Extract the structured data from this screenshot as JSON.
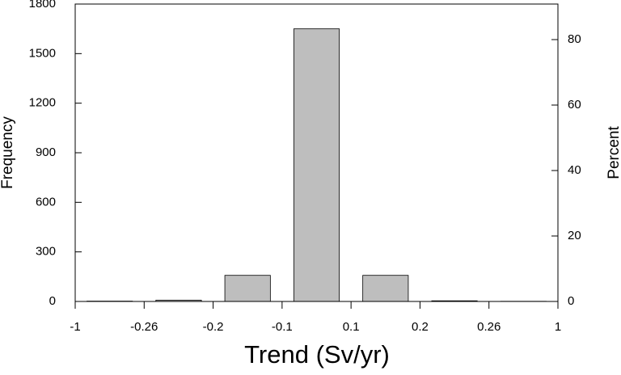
{
  "chart_data": {
    "type": "histogram",
    "bins": [
      -1,
      -0.26,
      -0.2,
      -0.1,
      0.1,
      0.2,
      0.26,
      1
    ],
    "values": [
      2,
      8,
      158,
      1650,
      158,
      4,
      1
    ],
    "color": "#bebebe",
    "xlabel": "Trend (Sv/yr)",
    "ylabel": "Frequency",
    "y2label": "Percent",
    "ylim": [
      0,
      1800
    ],
    "yticks": [
      0,
      300,
      600,
      900,
      1200,
      1500,
      1800
    ],
    "y2lim": [
      0,
      90.86
    ],
    "y2ticks": [
      0,
      20,
      40,
      60,
      80
    ]
  }
}
